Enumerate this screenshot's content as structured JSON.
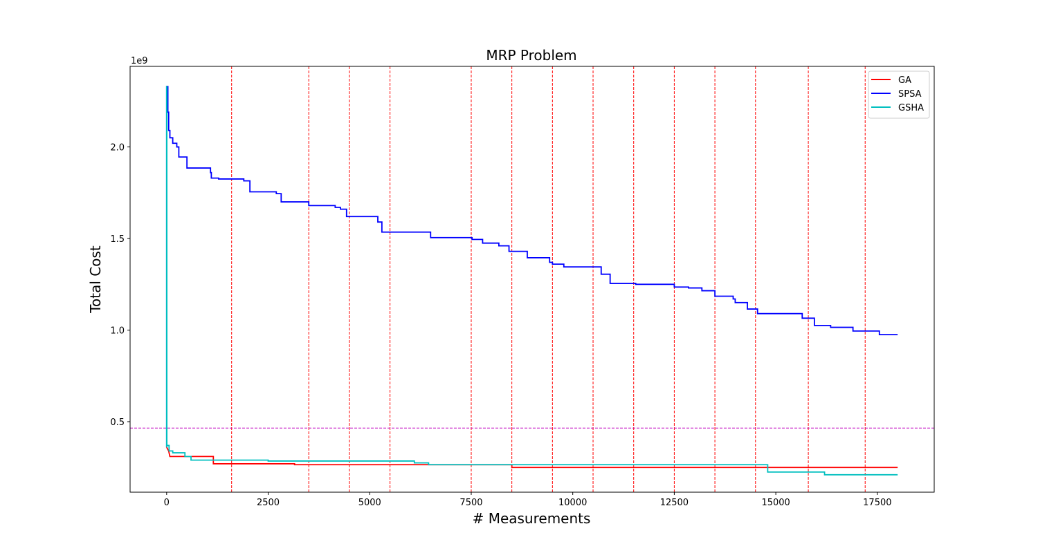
{
  "chart_data": {
    "type": "line",
    "title": "MRP Problem",
    "xlabel": "# Measurements",
    "ylabel": "Total Cost",
    "y_offset_label": "1e9",
    "y_scale_factor": 1000000000,
    "xlim": [
      -900,
      18900
    ],
    "ylim": [
      0.115,
      2.44
    ],
    "x_ticks": [
      0,
      2500,
      5000,
      7500,
      10000,
      12500,
      15000,
      17500
    ],
    "x_tick_labels": [
      "0",
      "2500",
      "5000",
      "7500",
      "10000",
      "12500",
      "15000",
      "17500"
    ],
    "y_ticks": [
      0.5,
      1.0,
      1.5,
      2.0
    ],
    "y_tick_labels": [
      "0.5",
      "1.0",
      "1.5",
      "2.0"
    ],
    "legend_position": "top-right",
    "vlines": {
      "x": [
        1600,
        3500,
        4500,
        5500,
        7500,
        8500,
        9500,
        10500,
        11500,
        12500,
        13500,
        14500,
        15800,
        17200
      ],
      "color": "#ff0000",
      "style": "dashed"
    },
    "hline": {
      "y": 0.465,
      "color": "#bf00bf",
      "style": "dashed"
    },
    "series": [
      {
        "name": "GA",
        "color": "#ff0000",
        "points": [
          [
            0,
            0.36
          ],
          [
            50,
            0.34
          ],
          [
            80,
            0.31
          ],
          [
            500,
            0.31
          ],
          [
            1150,
            0.31
          ],
          [
            1150,
            0.27
          ],
          [
            3150,
            0.27
          ],
          [
            3150,
            0.265
          ],
          [
            8500,
            0.265
          ],
          [
            8500,
            0.25
          ],
          [
            18000,
            0.25
          ]
        ]
      },
      {
        "name": "SPSA",
        "color": "#0000ff",
        "points": [
          [
            0,
            0.36
          ],
          [
            0,
            2.33
          ],
          [
            30,
            2.33
          ],
          [
            30,
            2.19
          ],
          [
            50,
            2.19
          ],
          [
            50,
            2.09
          ],
          [
            80,
            2.09
          ],
          [
            80,
            2.05
          ],
          [
            150,
            2.05
          ],
          [
            150,
            2.02
          ],
          [
            250,
            2.02
          ],
          [
            250,
            2.0
          ],
          [
            300,
            2.0
          ],
          [
            300,
            1.945
          ],
          [
            500,
            1.945
          ],
          [
            500,
            1.885
          ],
          [
            1080,
            1.885
          ],
          [
            1080,
            1.86
          ],
          [
            1100,
            1.86
          ],
          [
            1100,
            1.83
          ],
          [
            1280,
            1.83
          ],
          [
            1280,
            1.825
          ],
          [
            1900,
            1.825
          ],
          [
            1900,
            1.815
          ],
          [
            2050,
            1.815
          ],
          [
            2050,
            1.755
          ],
          [
            2700,
            1.755
          ],
          [
            2700,
            1.745
          ],
          [
            2820,
            1.745
          ],
          [
            2820,
            1.7
          ],
          [
            3500,
            1.7
          ],
          [
            3500,
            1.68
          ],
          [
            4150,
            1.68
          ],
          [
            4150,
            1.67
          ],
          [
            4280,
            1.67
          ],
          [
            4280,
            1.66
          ],
          [
            4430,
            1.66
          ],
          [
            4430,
            1.62
          ],
          [
            5200,
            1.62
          ],
          [
            5200,
            1.59
          ],
          [
            5300,
            1.59
          ],
          [
            5300,
            1.535
          ],
          [
            6500,
            1.535
          ],
          [
            6500,
            1.505
          ],
          [
            7520,
            1.505
          ],
          [
            7520,
            1.495
          ],
          [
            7780,
            1.495
          ],
          [
            7780,
            1.475
          ],
          [
            8180,
            1.475
          ],
          [
            8180,
            1.46
          ],
          [
            8430,
            1.46
          ],
          [
            8430,
            1.43
          ],
          [
            8880,
            1.43
          ],
          [
            8880,
            1.395
          ],
          [
            9430,
            1.395
          ],
          [
            9430,
            1.37
          ],
          [
            9500,
            1.37
          ],
          [
            9500,
            1.36
          ],
          [
            9780,
            1.36
          ],
          [
            9780,
            1.345
          ],
          [
            10700,
            1.345
          ],
          [
            10700,
            1.305
          ],
          [
            10920,
            1.305
          ],
          [
            10920,
            1.255
          ],
          [
            11550,
            1.255
          ],
          [
            11550,
            1.25
          ],
          [
            12500,
            1.25
          ],
          [
            12500,
            1.235
          ],
          [
            12850,
            1.235
          ],
          [
            12850,
            1.23
          ],
          [
            13180,
            1.23
          ],
          [
            13180,
            1.215
          ],
          [
            13500,
            1.215
          ],
          [
            13500,
            1.185
          ],
          [
            13950,
            1.185
          ],
          [
            13950,
            1.17
          ],
          [
            14000,
            1.17
          ],
          [
            14000,
            1.15
          ],
          [
            14300,
            1.15
          ],
          [
            14300,
            1.115
          ],
          [
            14550,
            1.115
          ],
          [
            14550,
            1.09
          ],
          [
            15650,
            1.09
          ],
          [
            15650,
            1.065
          ],
          [
            15950,
            1.065
          ],
          [
            15950,
            1.025
          ],
          [
            16350,
            1.025
          ],
          [
            16350,
            1.015
          ],
          [
            16900,
            1.015
          ],
          [
            16900,
            0.995
          ],
          [
            17550,
            0.995
          ],
          [
            17550,
            0.975
          ],
          [
            18000,
            0.975
          ]
        ]
      },
      {
        "name": "GSHA",
        "color": "#00bfbf",
        "points": [
          [
            0,
            0.36
          ],
          [
            0,
            2.33
          ],
          [
            5,
            2.33
          ],
          [
            5,
            0.37
          ],
          [
            60,
            0.37
          ],
          [
            60,
            0.34
          ],
          [
            150,
            0.34
          ],
          [
            150,
            0.33
          ],
          [
            450,
            0.33
          ],
          [
            450,
            0.31
          ],
          [
            600,
            0.31
          ],
          [
            600,
            0.29
          ],
          [
            1150,
            0.29
          ],
          [
            1150,
            0.29
          ],
          [
            2500,
            0.29
          ],
          [
            2500,
            0.285
          ],
          [
            6100,
            0.285
          ],
          [
            6100,
            0.275
          ],
          [
            6450,
            0.275
          ],
          [
            6450,
            0.265
          ],
          [
            14800,
            0.265
          ],
          [
            14800,
            0.225
          ],
          [
            16200,
            0.225
          ],
          [
            16200,
            0.21
          ],
          [
            18000,
            0.21
          ]
        ]
      }
    ]
  }
}
